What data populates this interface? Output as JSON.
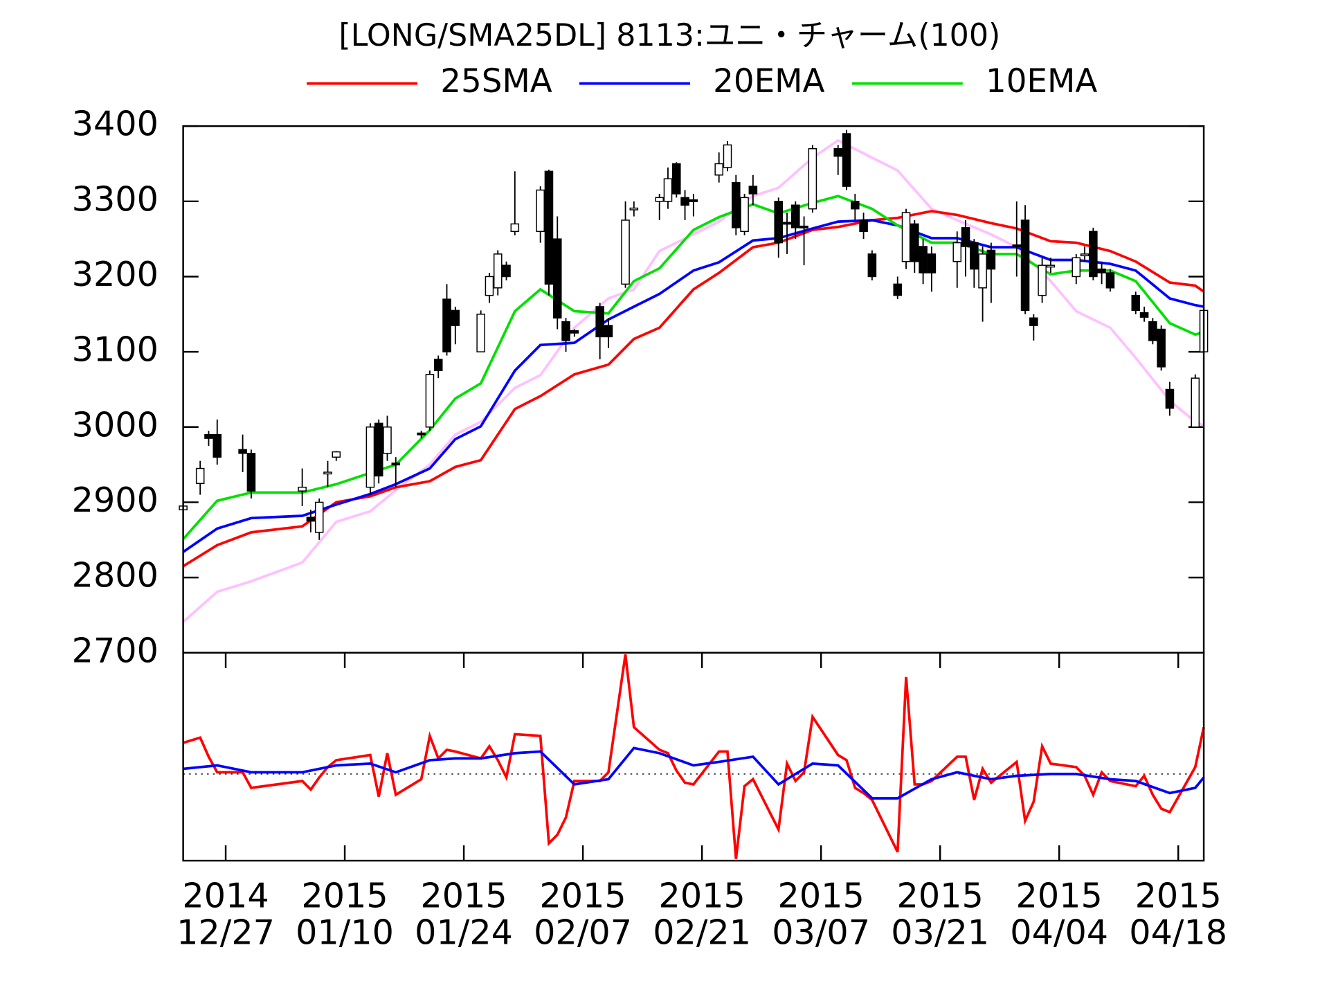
{
  "chart_data": [
    {
      "type": "candlestick",
      "title": "[LONG/SMA25DL] 8113:ユニ・チャーム(100)",
      "xlim": [
        -5,
        115
      ],
      "ylim": [
        2700,
        3400
      ],
      "yticks": [
        2700,
        2800,
        2900,
        3000,
        3100,
        3200,
        3300,
        3400
      ],
      "up_color": "#ffffff",
      "down_color": "#000000",
      "candles": {
        "x": [
          -5,
          -3,
          -2,
          -1,
          2,
          3,
          9,
          10,
          11,
          12,
          13,
          17,
          18,
          19,
          20,
          23,
          24,
          25,
          26,
          27,
          30,
          31,
          32,
          33,
          34,
          37,
          38,
          39,
          40,
          41,
          44,
          45,
          47,
          48,
          51,
          52,
          53,
          54,
          55,
          58,
          59,
          60,
          61,
          62,
          65,
          66,
          67,
          68,
          69,
          72,
          73,
          74,
          75,
          76,
          79,
          80,
          81,
          82,
          83,
          86,
          87,
          88,
          89,
          90,
          93,
          94,
          95,
          96,
          97,
          100,
          101,
          102,
          103,
          104,
          107,
          108,
          109,
          110,
          111,
          114,
          115
        ],
        "open": [
          2890,
          2925,
          2990,
          2990,
          2970,
          2965,
          2915,
          2880,
          2860,
          2938,
          2960,
          2920,
          3005,
          2965,
          2952,
          2992,
          3000,
          3090,
          3170,
          3155,
          3100,
          3175,
          3185,
          3215,
          3260,
          3260,
          3340,
          3250,
          3140,
          3128,
          3160,
          3135,
          3190,
          3289,
          3300,
          3300,
          3350,
          3305,
          3302,
          3335,
          3345,
          3325,
          3260,
          3320,
          3300,
          3272,
          3295,
          3267,
          3290,
          3370,
          3390,
          3300,
          3275,
          3230,
          3190,
          3220,
          3270,
          3240,
          3230,
          3220,
          3265,
          3245,
          3185,
          3235,
          3242,
          3275,
          3145,
          3175,
          3213,
          3200,
          3228,
          3260,
          3210,
          3205,
          3175,
          3152,
          3140,
          3130,
          3050,
          3000,
          3100
        ],
        "high": [
          2900,
          2955,
          2995,
          3010,
          2990,
          2970,
          2945,
          2890,
          2905,
          2955,
          2968,
          3005,
          3010,
          3015,
          2960,
          2995,
          3075,
          3095,
          3190,
          3160,
          3155,
          3205,
          3235,
          3220,
          3340,
          3320,
          3342,
          3280,
          3145,
          3130,
          3165,
          3145,
          3300,
          3300,
          3310,
          3345,
          3352,
          3315,
          3310,
          3365,
          3380,
          3335,
          3310,
          3335,
          3305,
          3285,
          3300,
          3280,
          3375,
          3375,
          3395,
          3310,
          3285,
          3235,
          3200,
          3290,
          3275,
          3250,
          3240,
          3260,
          3275,
          3250,
          3240,
          3245,
          3300,
          3295,
          3150,
          3225,
          3225,
          3230,
          3240,
          3265,
          3220,
          3210,
          3180,
          3160,
          3145,
          3135,
          3060,
          3070,
          3160
        ],
        "low": [
          2885,
          2910,
          2975,
          2950,
          2940,
          2905,
          2895,
          2860,
          2850,
          2920,
          2955,
          2910,
          2925,
          2955,
          2920,
          2985,
          2995,
          3065,
          3095,
          3110,
          3100,
          3165,
          3175,
          3195,
          3255,
          3245,
          3175,
          3130,
          3100,
          3120,
          3090,
          3105,
          3185,
          3280,
          3275,
          3290,
          3305,
          3275,
          3280,
          3325,
          3340,
          3255,
          3255,
          3295,
          3225,
          3230,
          3250,
          3215,
          3285,
          3335,
          3315,
          3275,
          3250,
          3195,
          3170,
          3210,
          3205,
          3190,
          3180,
          3185,
          3200,
          3185,
          3140,
          3165,
          3200,
          3150,
          3115,
          3165,
          3205,
          3190,
          3220,
          3195,
          3190,
          3180,
          3150,
          3140,
          3110,
          3075,
          3015,
          3000,
          3095
        ],
        "close": [
          2895,
          2945,
          2985,
          2960,
          2965,
          2915,
          2920,
          2875,
          2900,
          2940,
          2967,
          3000,
          2935,
          3000,
          2950,
          2990,
          3070,
          3075,
          3100,
          3135,
          3150,
          3200,
          3230,
          3200,
          3270,
          3315,
          3190,
          3145,
          3115,
          3125,
          3120,
          3120,
          3275,
          3291,
          3305,
          3330,
          3310,
          3295,
          3300,
          3350,
          3375,
          3265,
          3305,
          3310,
          3245,
          3270,
          3265,
          3265,
          3370,
          3360,
          3320,
          3290,
          3260,
          3200,
          3175,
          3285,
          3220,
          3205,
          3205,
          3245,
          3240,
          3210,
          3230,
          3210,
          3240,
          3155,
          3135,
          3215,
          3215,
          3225,
          3230,
          3200,
          3205,
          3185,
          3155,
          3146,
          3115,
          3080,
          3025,
          3065,
          3155
        ]
      },
      "series": [
        {
          "name": "25SMA",
          "color": "#ff0000",
          "x": [
            -5,
            -1,
            3,
            9,
            13,
            17,
            20,
            24,
            27,
            30,
            34,
            37,
            41,
            45,
            48,
            51,
            55,
            58,
            62,
            65,
            69,
            72,
            76,
            79,
            83,
            86,
            90,
            93,
            97,
            100,
            104,
            107,
            111,
            114,
            115
          ],
          "values": [
            2815,
            2843,
            2860,
            2868,
            2900,
            2908,
            2920,
            2928,
            2947,
            2956,
            3024,
            3041,
            3070,
            3083,
            3117,
            3132,
            3183,
            3205,
            3239,
            3245,
            3262,
            3266,
            3275,
            3278,
            3287,
            3282,
            3271,
            3264,
            3247,
            3245,
            3234,
            3220,
            3192,
            3188,
            3180
          ]
        },
        {
          "name": "20EMA",
          "color": "#0000ff",
          "x": [
            -5,
            -1,
            3,
            9,
            13,
            17,
            20,
            24,
            27,
            30,
            34,
            37,
            41,
            45,
            48,
            51,
            55,
            58,
            62,
            65,
            69,
            72,
            76,
            79,
            83,
            86,
            90,
            93,
            97,
            100,
            104,
            107,
            111,
            114,
            115
          ],
          "values": [
            2834,
            2865,
            2879,
            2882,
            2897,
            2911,
            2924,
            2945,
            2984,
            3001,
            3075,
            3109,
            3112,
            3143,
            3160,
            3177,
            3208,
            3219,
            3248,
            3251,
            3264,
            3273,
            3275,
            3268,
            3251,
            3251,
            3239,
            3239,
            3222,
            3222,
            3217,
            3208,
            3171,
            3162,
            3160
          ]
        },
        {
          "name": "10EMA",
          "color": "#00e000",
          "x": [
            -5,
            -1,
            3,
            9,
            13,
            17,
            20,
            24,
            27,
            30,
            34,
            37,
            41,
            45,
            48,
            51,
            55,
            58,
            62,
            65,
            69,
            72,
            76,
            79,
            83,
            86,
            90,
            93,
            97,
            100,
            104,
            107,
            111,
            114,
            115
          ],
          "values": [
            2851,
            2902,
            2913,
            2913,
            2924,
            2939,
            2950,
            2996,
            3038,
            3058,
            3154,
            3183,
            3154,
            3151,
            3194,
            3211,
            3262,
            3279,
            3296,
            3284,
            3298,
            3307,
            3290,
            3268,
            3245,
            3245,
            3230,
            3230,
            3203,
            3208,
            3208,
            3194,
            3138,
            3123,
            3126
          ]
        },
        {
          "color": "#ffc0ff",
          "x": [
            -5,
            -1,
            3,
            9,
            13,
            17,
            20,
            24,
            27,
            30,
            34,
            37,
            41,
            45,
            48,
            51,
            55,
            58,
            62,
            65,
            69,
            72,
            76,
            79,
            83,
            86,
            90,
            93,
            97,
            100,
            104,
            107,
            111,
            114,
            115
          ],
          "values": [
            2741,
            2781,
            2795,
            2820,
            2874,
            2888,
            2916,
            2950,
            2990,
            3007,
            3052,
            3069,
            3132,
            3171,
            3183,
            3234,
            3256,
            3273,
            3307,
            3318,
            3358,
            3381,
            3358,
            3341,
            3290,
            3275,
            3256,
            3239,
            3194,
            3154,
            3132,
            3092,
            3035,
            3007,
            3002
          ]
        }
      ]
    },
    {
      "type": "line",
      "xlim": [
        -5,
        115
      ],
      "ylim": [
        -5,
        7
      ],
      "reference_line": 0,
      "xticks": [
        {
          "value": 0,
          "label": [
            "2014",
            "12/27"
          ]
        },
        {
          "value": 14,
          "label": [
            "2015",
            "01/10"
          ]
        },
        {
          "value": 28,
          "label": [
            "2015",
            "01/24"
          ]
        },
        {
          "value": 42,
          "label": [
            "2015",
            "02/07"
          ]
        },
        {
          "value": 56,
          "label": [
            "2015",
            "02/21"
          ]
        },
        {
          "value": 70,
          "label": [
            "2015",
            "03/07"
          ]
        },
        {
          "value": 84,
          "label": [
            "2015",
            "03/21"
          ]
        },
        {
          "value": 98,
          "label": [
            "2015",
            "04/04"
          ]
        },
        {
          "value": 112,
          "label": [
            "2015",
            "04/18"
          ]
        }
      ],
      "series": [
        {
          "color": "#ff0000",
          "x": [
            -5,
            -3,
            -2,
            -1,
            2,
            3,
            9,
            10,
            11,
            12,
            13,
            17,
            18,
            19,
            20,
            23,
            24,
            25,
            26,
            27,
            30,
            31,
            32,
            33,
            34,
            37,
            38,
            39,
            40,
            41,
            44,
            45,
            47,
            48,
            51,
            52,
            53,
            54,
            55,
            58,
            59,
            60,
            61,
            62,
            65,
            66,
            67,
            68,
            69,
            72,
            73,
            74,
            75,
            76,
            79,
            80,
            81,
            82,
            83,
            86,
            87,
            88,
            89,
            90,
            93,
            94,
            95,
            96,
            97,
            100,
            101,
            102,
            103,
            104,
            107,
            108,
            109,
            110,
            111,
            114,
            115
          ],
          "values": [
            1.8,
            2.1,
            1.0,
            0.1,
            0.1,
            -0.8,
            -0.4,
            -0.9,
            -0.2,
            0.4,
            0.8,
            1.1,
            -1.3,
            1.2,
            -1.2,
            -0.3,
            2.2,
            0.9,
            1.4,
            1.3,
            0.9,
            1.6,
            0.8,
            -0.2,
            2.3,
            2.2,
            -4.0,
            -3.5,
            -2.5,
            -0.4,
            -0.4,
            0.1,
            6.9,
            2.7,
            1.4,
            1.2,
            0.2,
            -0.5,
            -0.6,
            1.3,
            1.3,
            -4.9,
            -0.7,
            -0.3,
            -3.2,
            0.6,
            -0.4,
            0.1,
            3.3,
            1.1,
            0.8,
            -0.8,
            -1.1,
            -1.5,
            -4.5,
            5.6,
            -0.6,
            -0.6,
            -0.4,
            1.0,
            1.0,
            -1.5,
            0.3,
            -0.5,
            0.7,
            -2.7,
            -1.6,
            1.6,
            0.6,
            0.4,
            -0.1,
            -1.2,
            0.1,
            -0.4,
            -0.7,
            -0.1,
            -1.2,
            -2.0,
            -2.2,
            0.4,
            2.7
          ]
        },
        {
          "color": "#0000ff",
          "x": [
            -5,
            -1,
            3,
            9,
            13,
            17,
            20,
            24,
            27,
            30,
            34,
            37,
            41,
            45,
            48,
            51,
            55,
            58,
            62,
            65,
            69,
            72,
            76,
            79,
            83,
            86,
            90,
            93,
            97,
            100,
            104,
            107,
            111,
            114,
            115
          ],
          "values": [
            0.3,
            0.5,
            0.1,
            0.1,
            0.5,
            0.6,
            0.1,
            0.8,
            0.9,
            0.9,
            1.2,
            1.3,
            -0.6,
            -0.3,
            1.5,
            1.2,
            0.5,
            0.7,
            1.0,
            -0.6,
            0.6,
            0.5,
            -1.4,
            -1.4,
            -0.3,
            0.1,
            -0.3,
            -0.1,
            0.0,
            0.0,
            -0.3,
            -0.4,
            -1.1,
            -0.8,
            -0.2
          ]
        }
      ]
    }
  ]
}
